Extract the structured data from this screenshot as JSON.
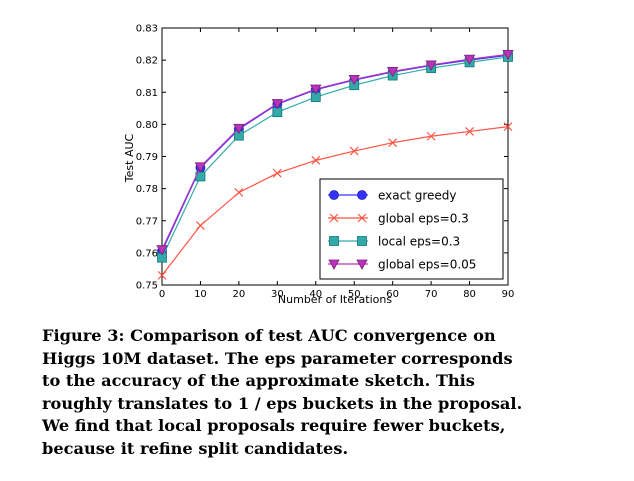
{
  "chart_data": {
    "type": "line",
    "xlabel": "Number of Iterations",
    "ylabel": "Test AUC",
    "xlim": [
      0,
      90
    ],
    "ylim": [
      0.75,
      0.83
    ],
    "x_ticks": [
      "0",
      "10",
      "20",
      "30",
      "40",
      "50",
      "60",
      "70",
      "80",
      "90"
    ],
    "y_ticks": [
      "0.75",
      "0.76",
      "0.77",
      "0.78",
      "0.79",
      "0.80",
      "0.81",
      "0.82",
      "0.83"
    ],
    "x": [
      0,
      10,
      20,
      30,
      40,
      50,
      60,
      70,
      80,
      90
    ],
    "legend_position": "bottom-right",
    "series": [
      {
        "name": "exact greedy",
        "color": "#3333ff",
        "marker": "circle",
        "values": [
          0.7605,
          0.7865,
          0.7985,
          0.8063,
          0.8108,
          0.8138,
          0.8163,
          0.8183,
          0.82,
          0.8215
        ]
      },
      {
        "name": "global eps=0.3",
        "color": "#ff5544",
        "marker": "x",
        "values": [
          0.753,
          0.7685,
          0.7788,
          0.7848,
          0.7888,
          0.7917,
          0.7943,
          0.7963,
          0.7978,
          0.7993
        ]
      },
      {
        "name": "local eps=0.3",
        "color": "#33aaaa",
        "marker": "square",
        "values": [
          0.7585,
          0.7838,
          0.7965,
          0.8038,
          0.8085,
          0.8122,
          0.8152,
          0.8175,
          0.8193,
          0.821
        ]
      },
      {
        "name": "global eps=0.05",
        "color": "#bb33bb",
        "marker": "triangle-down",
        "values": [
          0.761,
          0.7868,
          0.7988,
          0.8065,
          0.811,
          0.814,
          0.8165,
          0.8185,
          0.8203,
          0.8218
        ]
      }
    ]
  },
  "caption": {
    "lines": [
      "Figure 3:  Comparison of test AUC convergence on",
      "Higgs 10M dataset.  The eps parameter corresponds",
      "to the accuracy of the approximate sketch.   This",
      "roughly translates to 1 / eps buckets in the proposal.",
      "We find that local proposals require fewer buckets,",
      "because it refine split candidates."
    ]
  }
}
